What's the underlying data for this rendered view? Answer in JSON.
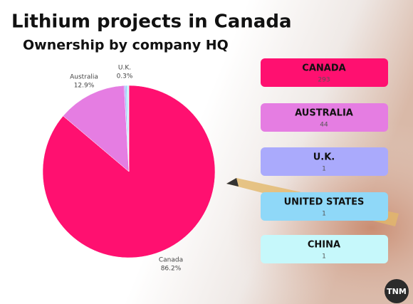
{
  "chart_data": {
    "type": "pie",
    "title": "Lithium projects in Canada",
    "subtitle": "Ownership by company HQ",
    "categories": [
      "CANADA",
      "AUSTRALIA",
      "U.K.",
      "UNITED STATES",
      "CHINA"
    ],
    "values": [
      293,
      44,
      1,
      1,
      1
    ],
    "colors": [
      "#ff1070",
      "#e57de2",
      "#aaaafc",
      "#8fd8f8",
      "#c6f8fb"
    ],
    "slice_labels": [
      "Canada",
      "Australia",
      "U.K.",
      null,
      null
    ],
    "share_labels": [
      "86.2%",
      "12.9%",
      "0.3%",
      null,
      null
    ],
    "logo": "TNM"
  }
}
